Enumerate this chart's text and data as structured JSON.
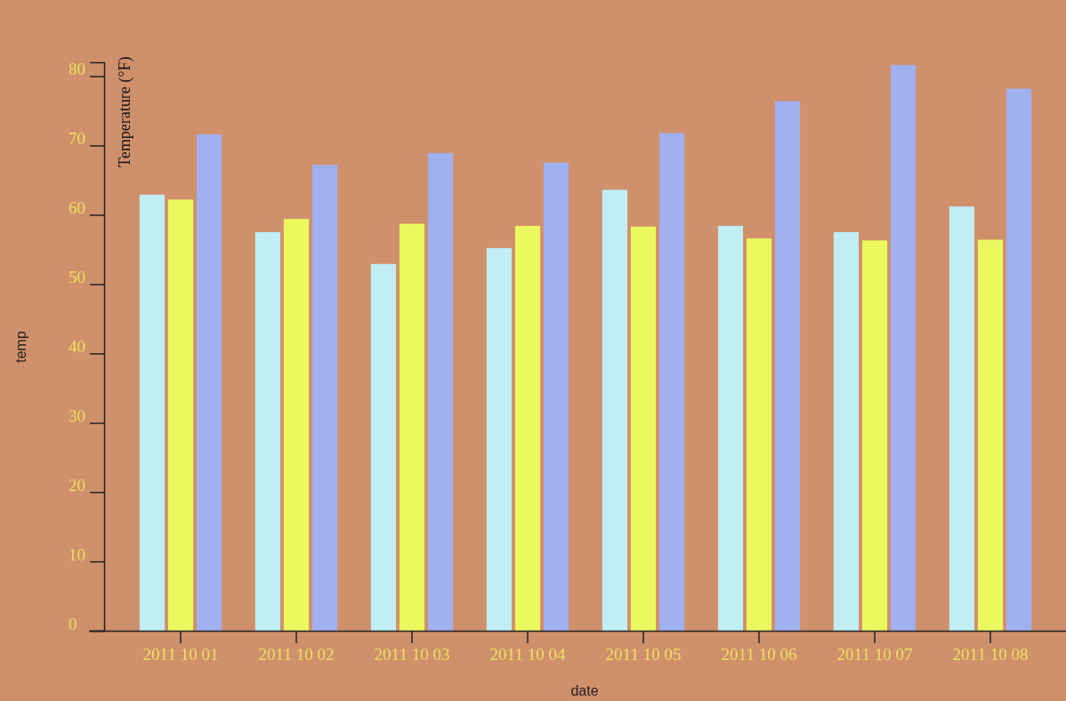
{
  "chart_data": {
    "type": "bar",
    "xlabel": "date",
    "ylabel": "temp",
    "annotations": [
      "Temperature (°F)"
    ],
    "categories": [
      "2011 10 01",
      "2011 10 02",
      "2011 10 03",
      "2011 10 04",
      "2011 10 05",
      "2011 10 06",
      "2011 10 07",
      "2011 10 08"
    ],
    "series": [
      {
        "color": "#c0eef4",
        "values": [
          62.9,
          57.5,
          52.9,
          55.2,
          63.6,
          58.4,
          57.5,
          61.2
        ]
      },
      {
        "color": "#ebf85e",
        "values": [
          62.2,
          59.4,
          58.7,
          58.4,
          58.3,
          56.6,
          56.3,
          56.4
        ]
      },
      {
        "color": "#a0b0f0",
        "values": [
          71.6,
          67.2,
          68.9,
          67.5,
          71.8,
          76.4,
          81.6,
          78.2
        ]
      }
    ],
    "ylim": [
      0,
      82
    ],
    "yticks": [
      0,
      10,
      20,
      30,
      40,
      50,
      60,
      70,
      80
    ],
    "grid": false
  }
}
